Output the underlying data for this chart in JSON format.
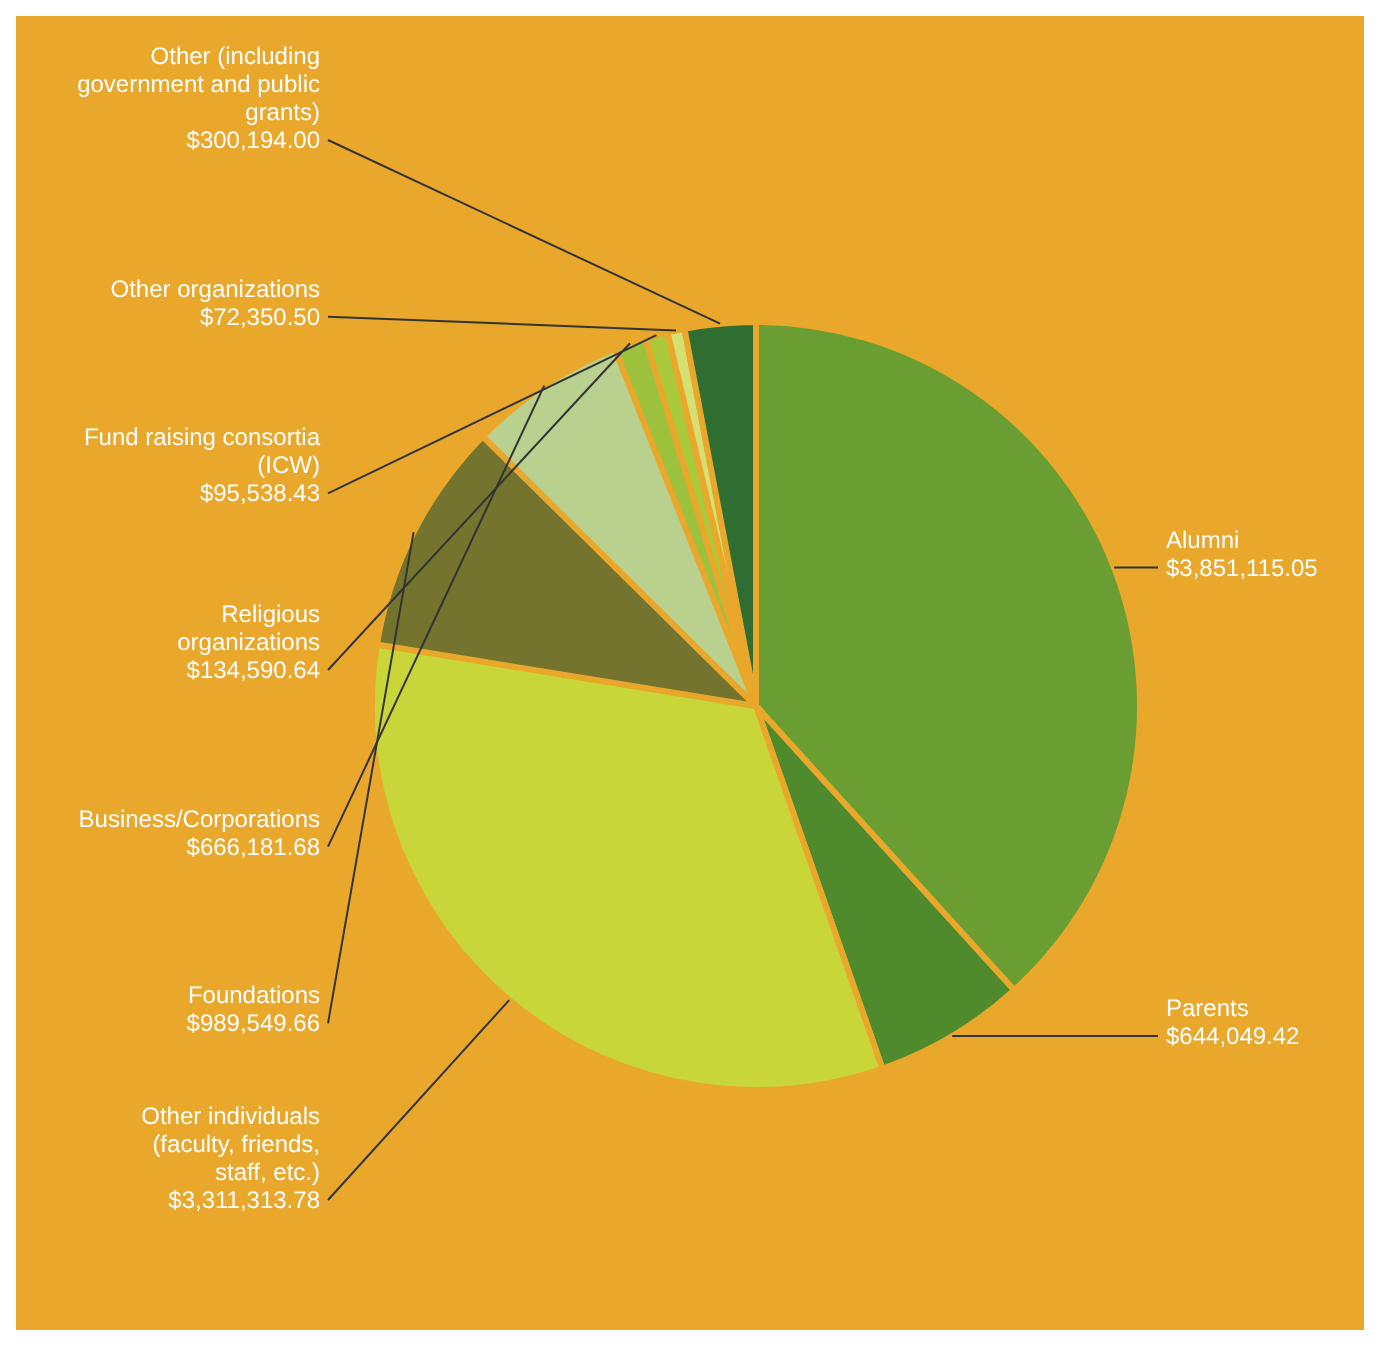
{
  "chart_data": {
    "type": "pie",
    "categories": [
      "Alumni",
      "Parents",
      "Other individuals (faculty, friends, staff, etc.)",
      "Foundations",
      "Business/Corporations",
      "Religious organizations",
      "Fund raising consortia (ICW)",
      "Other organizations",
      "Other (including government and public grants)"
    ],
    "values": [
      3851115.05,
      644049.42,
      3311313.78,
      989549.66,
      666181.68,
      134590.64,
      95538.43,
      72350.5,
      300194.0
    ],
    "value_labels": [
      "$3,851,115.05",
      "$644,049.42",
      "$3,311,313.78",
      "$989,549.66",
      "$666,181.68",
      "$134,590.64",
      "$95,538.43",
      "$72,350.50",
      "$300,194.00"
    ],
    "colors": [
      "#6a9e32",
      "#4f8a2c",
      "#c9d63a",
      "#74742e",
      "#b9d08e",
      "#9cc23e",
      "#a9c93a",
      "#d6df72",
      "#2f6e30"
    ]
  }
}
